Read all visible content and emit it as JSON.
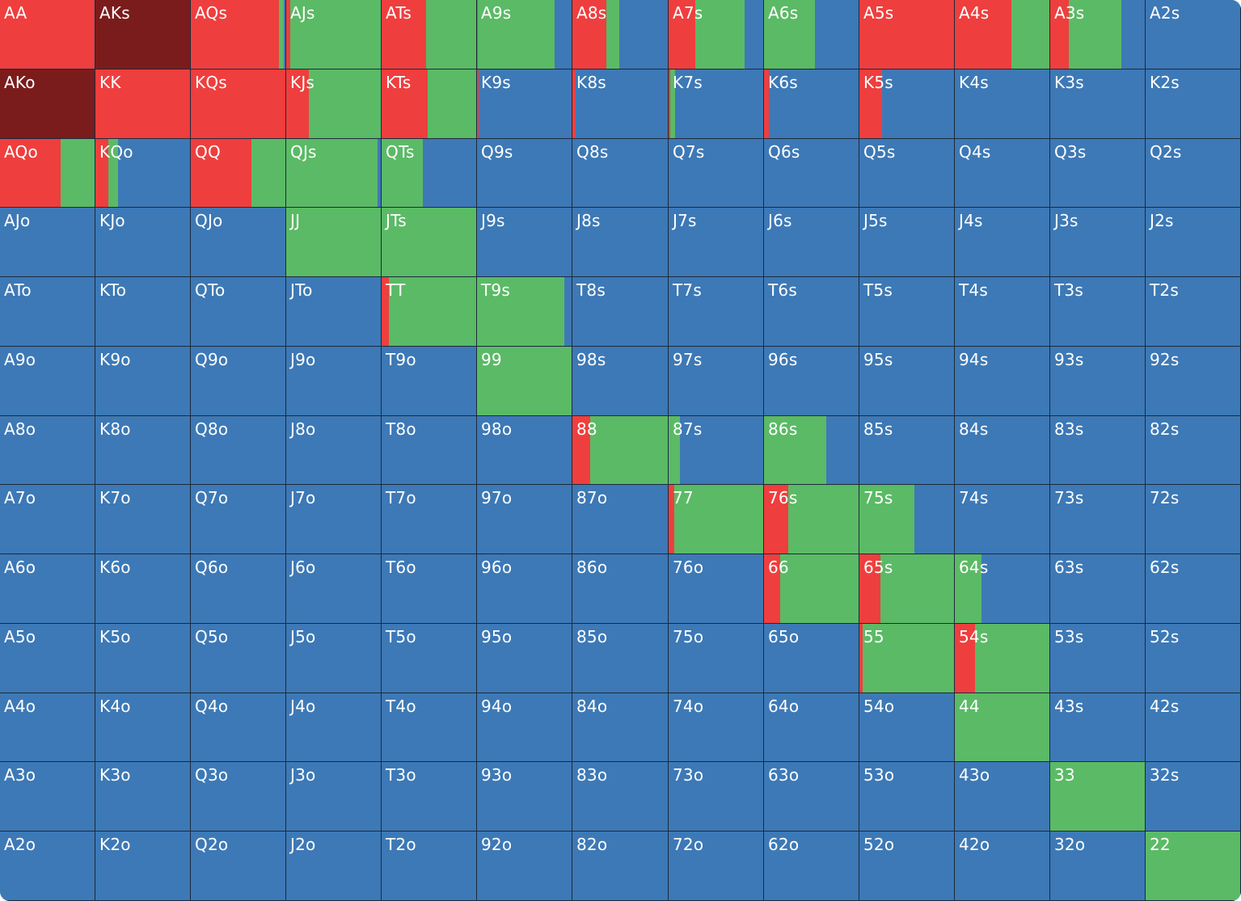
{
  "colors": {
    "raise_pure": "#7b1c1c",
    "raise": "#ef3e3e",
    "call": "#5bba66",
    "fold": "#3d79b6",
    "grid_line": "#1c2a3c",
    "label": "#ffffff"
  },
  "grid": {
    "rows": 13,
    "cols": 13,
    "cells": [
      [
        {
          "label": "AA",
          "raise": 1,
          "call": 0
        },
        {
          "label": "AKs",
          "raise": 1,
          "call": 0,
          "dark": true
        },
        {
          "label": "AQs",
          "raise": 0.93,
          "call": 0.05
        },
        {
          "label": "AJs",
          "raise": 0.04,
          "call": 0.96
        },
        {
          "label": "ATs",
          "raise": 0.47,
          "call": 0.53
        },
        {
          "label": "A9s",
          "raise": 0.01,
          "call": 0.81
        },
        {
          "label": "A8s",
          "raise": 0.36,
          "call": 0.13
        },
        {
          "label": "A7s",
          "raise": 0.28,
          "call": 0.52
        },
        {
          "label": "A6s",
          "raise": 0,
          "call": 0.54
        },
        {
          "label": "A5s",
          "raise": 1,
          "call": 0
        },
        {
          "label": "A4s",
          "raise": 0.6,
          "call": 0.4
        },
        {
          "label": "A3s",
          "raise": 0.2,
          "call": 0.55
        },
        {
          "label": "A2s",
          "raise": 0,
          "call": 0
        }
      ],
      [
        {
          "label": "AKo",
          "raise": 1,
          "call": 0,
          "dark": true
        },
        {
          "label": "KK",
          "raise": 1,
          "call": 0
        },
        {
          "label": "KQs",
          "raise": 1,
          "call": 0
        },
        {
          "label": "KJs",
          "raise": 0.24,
          "call": 0.76
        },
        {
          "label": "KTs",
          "raise": 0.49,
          "call": 0.51
        },
        {
          "label": "K9s",
          "raise": 0.02,
          "call": 0
        },
        {
          "label": "K8s",
          "raise": 0.03,
          "call": 0
        },
        {
          "label": "K7s",
          "raise": 0.02,
          "call": 0.05
        },
        {
          "label": "K6s",
          "raise": 0.05,
          "call": 0
        },
        {
          "label": "K5s",
          "raise": 0.24,
          "call": 0
        },
        {
          "label": "K4s",
          "raise": 0,
          "call": 0
        },
        {
          "label": "K3s",
          "raise": 0,
          "call": 0
        },
        {
          "label": "K2s",
          "raise": 0,
          "call": 0
        }
      ],
      [
        {
          "label": "AQo",
          "raise": 0.64,
          "call": 0.36
        },
        {
          "label": "KQo",
          "raise": 0.14,
          "call": 0.1
        },
        {
          "label": "QQ",
          "raise": 0.64,
          "call": 0.36
        },
        {
          "label": "QJs",
          "raise": 0,
          "call": 0.97
        },
        {
          "label": "QTs",
          "raise": 0,
          "call": 0.44
        },
        {
          "label": "Q9s",
          "raise": 0,
          "call": 0
        },
        {
          "label": "Q8s",
          "raise": 0,
          "call": 0
        },
        {
          "label": "Q7s",
          "raise": 0,
          "call": 0
        },
        {
          "label": "Q6s",
          "raise": 0,
          "call": 0
        },
        {
          "label": "Q5s",
          "raise": 0,
          "call": 0
        },
        {
          "label": "Q4s",
          "raise": 0,
          "call": 0
        },
        {
          "label": "Q3s",
          "raise": 0,
          "call": 0
        },
        {
          "label": "Q2s",
          "raise": 0,
          "call": 0
        }
      ],
      [
        {
          "label": "AJo",
          "raise": 0,
          "call": 0
        },
        {
          "label": "KJo",
          "raise": 0,
          "call": 0
        },
        {
          "label": "QJo",
          "raise": 0,
          "call": 0
        },
        {
          "label": "JJ",
          "raise": 0,
          "call": 1
        },
        {
          "label": "JTs",
          "raise": 0,
          "call": 1
        },
        {
          "label": "J9s",
          "raise": 0,
          "call": 0
        },
        {
          "label": "J8s",
          "raise": 0,
          "call": 0
        },
        {
          "label": "J7s",
          "raise": 0,
          "call": 0
        },
        {
          "label": "J6s",
          "raise": 0,
          "call": 0
        },
        {
          "label": "J5s",
          "raise": 0,
          "call": 0
        },
        {
          "label": "J4s",
          "raise": 0,
          "call": 0
        },
        {
          "label": "J3s",
          "raise": 0,
          "call": 0
        },
        {
          "label": "J2s",
          "raise": 0,
          "call": 0
        }
      ],
      [
        {
          "label": "ATo",
          "raise": 0,
          "call": 0
        },
        {
          "label": "KTo",
          "raise": 0,
          "call": 0
        },
        {
          "label": "QTo",
          "raise": 0,
          "call": 0
        },
        {
          "label": "JTo",
          "raise": 0,
          "call": 0
        },
        {
          "label": "TT",
          "raise": 0.08,
          "call": 0.92
        },
        {
          "label": "T9s",
          "raise": 0,
          "call": 0.92
        },
        {
          "label": "T8s",
          "raise": 0,
          "call": 0
        },
        {
          "label": "T7s",
          "raise": 0,
          "call": 0
        },
        {
          "label": "T6s",
          "raise": 0,
          "call": 0
        },
        {
          "label": "T5s",
          "raise": 0,
          "call": 0
        },
        {
          "label": "T4s",
          "raise": 0,
          "call": 0
        },
        {
          "label": "T3s",
          "raise": 0,
          "call": 0
        },
        {
          "label": "T2s",
          "raise": 0,
          "call": 0
        }
      ],
      [
        {
          "label": "A9o",
          "raise": 0,
          "call": 0
        },
        {
          "label": "K9o",
          "raise": 0,
          "call": 0
        },
        {
          "label": "Q9o",
          "raise": 0,
          "call": 0
        },
        {
          "label": "J9o",
          "raise": 0,
          "call": 0
        },
        {
          "label": "T9o",
          "raise": 0,
          "call": 0
        },
        {
          "label": "99",
          "raise": 0,
          "call": 1
        },
        {
          "label": "98s",
          "raise": 0,
          "call": 0
        },
        {
          "label": "97s",
          "raise": 0,
          "call": 0
        },
        {
          "label": "96s",
          "raise": 0,
          "call": 0
        },
        {
          "label": "95s",
          "raise": 0,
          "call": 0
        },
        {
          "label": "94s",
          "raise": 0,
          "call": 0
        },
        {
          "label": "93s",
          "raise": 0,
          "call": 0
        },
        {
          "label": "92s",
          "raise": 0,
          "call": 0
        }
      ],
      [
        {
          "label": "A8o",
          "raise": 0,
          "call": 0
        },
        {
          "label": "K8o",
          "raise": 0,
          "call": 0
        },
        {
          "label": "Q8o",
          "raise": 0,
          "call": 0
        },
        {
          "label": "J8o",
          "raise": 0,
          "call": 0
        },
        {
          "label": "T8o",
          "raise": 0,
          "call": 0
        },
        {
          "label": "98o",
          "raise": 0,
          "call": 0
        },
        {
          "label": "88",
          "raise": 0.19,
          "call": 0.81
        },
        {
          "label": "87s",
          "raise": 0,
          "call": 0.12
        },
        {
          "label": "86s",
          "raise": 0,
          "call": 0.66
        },
        {
          "label": "85s",
          "raise": 0,
          "call": 0
        },
        {
          "label": "84s",
          "raise": 0,
          "call": 0
        },
        {
          "label": "83s",
          "raise": 0,
          "call": 0
        },
        {
          "label": "82s",
          "raise": 0,
          "call": 0
        }
      ],
      [
        {
          "label": "A7o",
          "raise": 0,
          "call": 0
        },
        {
          "label": "K7o",
          "raise": 0,
          "call": 0
        },
        {
          "label": "Q7o",
          "raise": 0,
          "call": 0
        },
        {
          "label": "J7o",
          "raise": 0,
          "call": 0
        },
        {
          "label": "T7o",
          "raise": 0,
          "call": 0
        },
        {
          "label": "97o",
          "raise": 0,
          "call": 0
        },
        {
          "label": "87o",
          "raise": 0,
          "call": 0
        },
        {
          "label": "77",
          "raise": 0.06,
          "call": 0.94
        },
        {
          "label": "76s",
          "raise": 0.26,
          "call": 0.74
        },
        {
          "label": "75s",
          "raise": 0,
          "call": 0.58
        },
        {
          "label": "74s",
          "raise": 0,
          "call": 0
        },
        {
          "label": "73s",
          "raise": 0,
          "call": 0
        },
        {
          "label": "72s",
          "raise": 0,
          "call": 0
        }
      ],
      [
        {
          "label": "A6o",
          "raise": 0,
          "call": 0
        },
        {
          "label": "K6o",
          "raise": 0,
          "call": 0
        },
        {
          "label": "Q6o",
          "raise": 0,
          "call": 0
        },
        {
          "label": "J6o",
          "raise": 0,
          "call": 0
        },
        {
          "label": "T6o",
          "raise": 0,
          "call": 0
        },
        {
          "label": "96o",
          "raise": 0,
          "call": 0
        },
        {
          "label": "86o",
          "raise": 0,
          "call": 0
        },
        {
          "label": "76o",
          "raise": 0,
          "call": 0
        },
        {
          "label": "66",
          "raise": 0.17,
          "call": 0.83
        },
        {
          "label": "65s",
          "raise": 0.22,
          "call": 0.78
        },
        {
          "label": "64s",
          "raise": 0,
          "call": 0.28
        },
        {
          "label": "63s",
          "raise": 0,
          "call": 0
        },
        {
          "label": "62s",
          "raise": 0,
          "call": 0
        }
      ],
      [
        {
          "label": "A5o",
          "raise": 0,
          "call": 0
        },
        {
          "label": "K5o",
          "raise": 0,
          "call": 0
        },
        {
          "label": "Q5o",
          "raise": 0,
          "call": 0
        },
        {
          "label": "J5o",
          "raise": 0,
          "call": 0
        },
        {
          "label": "T5o",
          "raise": 0,
          "call": 0
        },
        {
          "label": "95o",
          "raise": 0,
          "call": 0
        },
        {
          "label": "85o",
          "raise": 0,
          "call": 0
        },
        {
          "label": "75o",
          "raise": 0,
          "call": 0
        },
        {
          "label": "65o",
          "raise": 0,
          "call": 0
        },
        {
          "label": "55",
          "raise": 0.03,
          "call": 0.97
        },
        {
          "label": "54s",
          "raise": 0.21,
          "call": 0.79
        },
        {
          "label": "53s",
          "raise": 0,
          "call": 0
        },
        {
          "label": "52s",
          "raise": 0,
          "call": 0
        }
      ],
      [
        {
          "label": "A4o",
          "raise": 0,
          "call": 0
        },
        {
          "label": "K4o",
          "raise": 0,
          "call": 0
        },
        {
          "label": "Q4o",
          "raise": 0,
          "call": 0
        },
        {
          "label": "J4o",
          "raise": 0,
          "call": 0
        },
        {
          "label": "T4o",
          "raise": 0,
          "call": 0
        },
        {
          "label": "94o",
          "raise": 0,
          "call": 0
        },
        {
          "label": "84o",
          "raise": 0,
          "call": 0
        },
        {
          "label": "74o",
          "raise": 0,
          "call": 0
        },
        {
          "label": "64o",
          "raise": 0,
          "call": 0
        },
        {
          "label": "54o",
          "raise": 0,
          "call": 0
        },
        {
          "label": "44",
          "raise": 0,
          "call": 1
        },
        {
          "label": "43s",
          "raise": 0,
          "call": 0
        },
        {
          "label": "42s",
          "raise": 0,
          "call": 0
        }
      ],
      [
        {
          "label": "A3o",
          "raise": 0,
          "call": 0
        },
        {
          "label": "K3o",
          "raise": 0,
          "call": 0
        },
        {
          "label": "Q3o",
          "raise": 0,
          "call": 0
        },
        {
          "label": "J3o",
          "raise": 0,
          "call": 0
        },
        {
          "label": "T3o",
          "raise": 0,
          "call": 0
        },
        {
          "label": "93o",
          "raise": 0,
          "call": 0
        },
        {
          "label": "83o",
          "raise": 0,
          "call": 0
        },
        {
          "label": "73o",
          "raise": 0,
          "call": 0
        },
        {
          "label": "63o",
          "raise": 0,
          "call": 0
        },
        {
          "label": "53o",
          "raise": 0,
          "call": 0
        },
        {
          "label": "43o",
          "raise": 0,
          "call": 0
        },
        {
          "label": "33",
          "raise": 0,
          "call": 1
        },
        {
          "label": "32s",
          "raise": 0,
          "call": 0
        }
      ],
      [
        {
          "label": "A2o",
          "raise": 0,
          "call": 0
        },
        {
          "label": "K2o",
          "raise": 0,
          "call": 0
        },
        {
          "label": "Q2o",
          "raise": 0,
          "call": 0
        },
        {
          "label": "J2o",
          "raise": 0,
          "call": 0
        },
        {
          "label": "T2o",
          "raise": 0,
          "call": 0
        },
        {
          "label": "92o",
          "raise": 0,
          "call": 0
        },
        {
          "label": "82o",
          "raise": 0,
          "call": 0
        },
        {
          "label": "72o",
          "raise": 0,
          "call": 0
        },
        {
          "label": "62o",
          "raise": 0,
          "call": 0
        },
        {
          "label": "52o",
          "raise": 0,
          "call": 0
        },
        {
          "label": "42o",
          "raise": 0,
          "call": 0
        },
        {
          "label": "32o",
          "raise": 0,
          "call": 0
        },
        {
          "label": "22",
          "raise": 0,
          "call": 1
        }
      ]
    ]
  }
}
